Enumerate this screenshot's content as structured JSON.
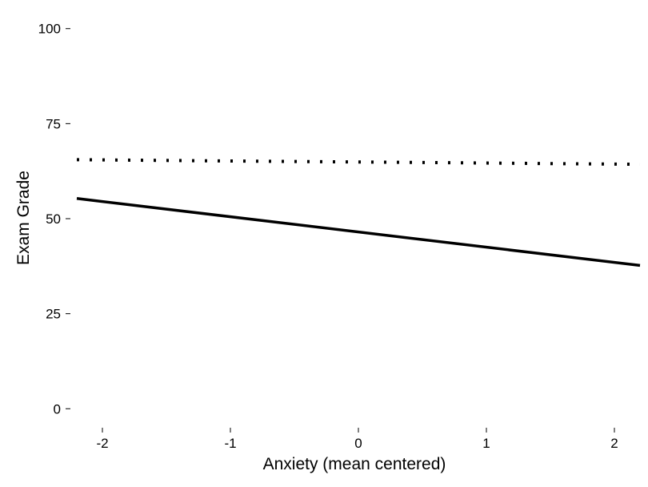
{
  "chart_data": {
    "type": "line",
    "title": "",
    "xlabel": "Anxiety (mean centered)",
    "ylabel": "Exam Grade",
    "xlim": [
      -2.25,
      2.2
    ],
    "ylim": [
      -5,
      105
    ],
    "xticks": [
      -2,
      -1,
      0,
      1,
      2
    ],
    "xtick_labels": [
      "-2",
      "-1",
      "0",
      "1",
      "2"
    ],
    "yticks": [
      0,
      25,
      50,
      75,
      100
    ],
    "ytick_labels": [
      "0",
      "25",
      "50",
      "75",
      "100"
    ],
    "grid": false,
    "legend": "none",
    "series": [
      {
        "style": "solid",
        "color": "#000000",
        "x": [
          -2.2,
          2.2
        ],
        "y": [
          55.3,
          37.7
        ]
      },
      {
        "style": "dotted",
        "color": "#000000",
        "x": [
          -2.2,
          2.2
        ],
        "y": [
          65.5,
          64.3
        ]
      }
    ]
  }
}
